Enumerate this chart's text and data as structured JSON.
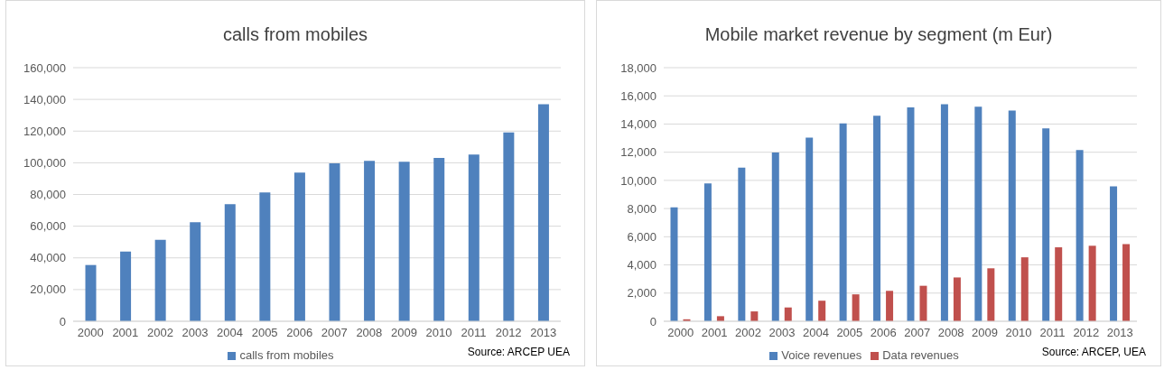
{
  "chart_data": [
    {
      "type": "bar",
      "title": "calls from mobiles",
      "categories": [
        "2000",
        "2001",
        "2002",
        "2003",
        "2004",
        "2005",
        "2006",
        "2007",
        "2008",
        "2009",
        "2010",
        "2011",
        "2012",
        "2013"
      ],
      "series": [
        {
          "name": "calls from mobiles",
          "color": "#4f81bd",
          "values": [
            35500,
            44000,
            51400,
            62500,
            73900,
            81300,
            93800,
            99600,
            101200,
            100700,
            103000,
            105200,
            119200,
            137000
          ]
        }
      ],
      "ylim": [
        0,
        160000
      ],
      "yticks": [
        {
          "value": 0,
          "label": "0"
        },
        {
          "value": 20000,
          "label": "20,000"
        },
        {
          "value": 40000,
          "label": "40,000"
        },
        {
          "value": 60000,
          "label": "60,000"
        },
        {
          "value": 80000,
          "label": "80,000"
        },
        {
          "value": 100000,
          "label": "100,000"
        },
        {
          "value": 120000,
          "label": "120,000"
        },
        {
          "value": 140000,
          "label": "140,000"
        },
        {
          "value": 160000,
          "label": "160,000"
        }
      ],
      "grid": "y",
      "legend": "bottom",
      "annotations": [
        "Source: ARCEP UEA"
      ]
    },
    {
      "type": "bar",
      "title": "Mobile market revenue by segment (m Eur)",
      "categories": [
        "2000",
        "2001",
        "2002",
        "2003",
        "2004",
        "2005",
        "2006",
        "2007",
        "2008",
        "2009",
        "2010",
        "2011",
        "2012",
        "2013"
      ],
      "series": [
        {
          "name": "Voice revenues",
          "color": "#4f81bd",
          "values": [
            8080,
            9790,
            10910,
            11980,
            13040,
            14050,
            14590,
            15180,
            15400,
            15230,
            14950,
            13690,
            12150,
            9570
          ]
        },
        {
          "name": "Data revenues",
          "color": "#c0504d",
          "values": [
            140,
            360,
            700,
            980,
            1460,
            1910,
            2160,
            2520,
            3110,
            3760,
            4540,
            5250,
            5360,
            5470
          ]
        }
      ],
      "ylim": [
        0,
        18000
      ],
      "yticks": [
        {
          "value": 0,
          "label": "0"
        },
        {
          "value": 2000,
          "label": "2,000"
        },
        {
          "value": 4000,
          "label": "4,000"
        },
        {
          "value": 6000,
          "label": "6,000"
        },
        {
          "value": 8000,
          "label": "8,000"
        },
        {
          "value": 10000,
          "label": "10,000"
        },
        {
          "value": 12000,
          "label": "12,000"
        },
        {
          "value": 14000,
          "label": "14,000"
        },
        {
          "value": 16000,
          "label": "16,000"
        },
        {
          "value": 18000,
          "label": "18,000"
        }
      ],
      "grid": "y",
      "legend": "bottom",
      "annotations": [
        "Source: ARCEP, UEA"
      ]
    }
  ]
}
